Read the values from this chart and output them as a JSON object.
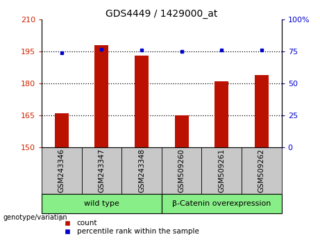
{
  "title": "GDS4449 / 1429000_at",
  "samples": [
    "GSM243346",
    "GSM243347",
    "GSM243348",
    "GSM509260",
    "GSM509261",
    "GSM509262"
  ],
  "count_values": [
    166,
    198,
    193,
    165,
    181,
    184
  ],
  "percentile_values": [
    74,
    77,
    76,
    75,
    76,
    76
  ],
  "ylim_left": [
    150,
    210
  ],
  "ylim_right": [
    0,
    100
  ],
  "yticks_left": [
    150,
    165,
    180,
    195,
    210
  ],
  "yticks_right": [
    0,
    25,
    50,
    75,
    100
  ],
  "ytick_labels_right": [
    "0",
    "25",
    "50",
    "75",
    "100%"
  ],
  "bar_color": "#bb1100",
  "dot_color": "#0000cc",
  "grid_ticks": [
    165,
    180,
    195
  ],
  "groups": [
    {
      "label": "wild type",
      "start": 0,
      "end": 3
    },
    {
      "label": "β-Catenin overexpression",
      "start": 3,
      "end": 6
    }
  ],
  "genotype_label": "genotype/variation",
  "legend_count": "count",
  "legend_percentile": "percentile rank within the sample",
  "tick_label_color_left": "#cc2200",
  "tick_label_color_right": "#0000cc",
  "xlabel_area_bg": "#c8c8c8",
  "group_area_bg": "#88ee88",
  "bar_width": 0.35
}
